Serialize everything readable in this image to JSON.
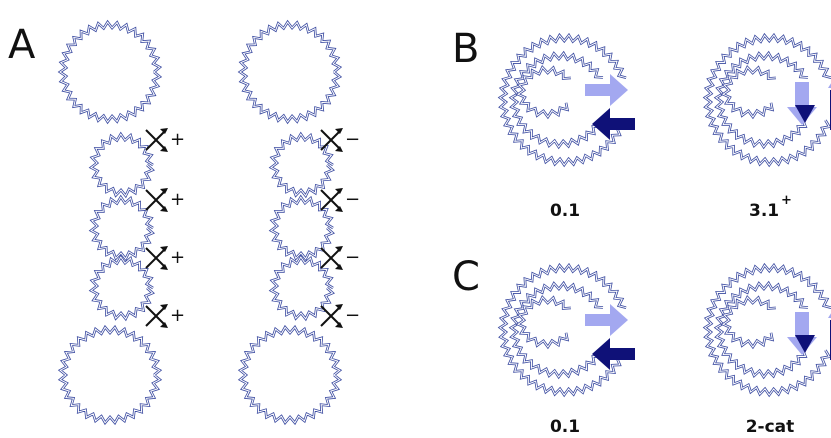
{
  "panel_a": {
    "label": "A",
    "left_crossings": [
      "+",
      "+",
      "+",
      "+"
    ],
    "right_crossings": [
      "−",
      "−",
      "−",
      "−"
    ]
  },
  "panel_b": {
    "label": "B",
    "captions": [
      {
        "text": "0.1"
      },
      {
        "text": "3.1",
        "superscript": "+"
      }
    ]
  },
  "panel_c": {
    "label": "C",
    "captions": [
      {
        "text": "0.1"
      },
      {
        "text": "2-cat"
      }
    ]
  }
}
